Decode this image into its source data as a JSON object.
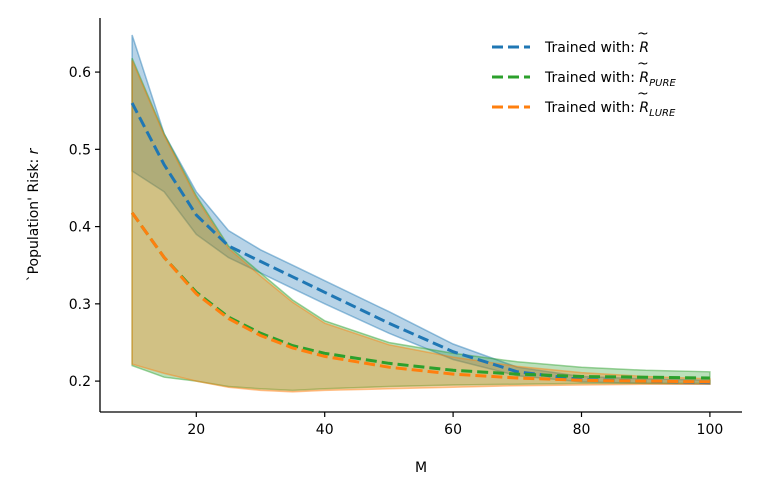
{
  "chart_data": {
    "type": "line",
    "xlabel": "M",
    "ylabel": "`Population' Risk: ",
    "ylabel_var": "r",
    "xlim": [
      5,
      105
    ],
    "ylim": [
      0.16,
      0.67
    ],
    "xticks": [
      20,
      40,
      60,
      80,
      100
    ],
    "yticks": [
      0.2,
      0.3,
      0.4,
      0.5,
      0.6
    ],
    "xtick_labels": [
      "20",
      "40",
      "60",
      "80",
      "100"
    ],
    "ytick_labels": [
      "0.2",
      "0.3",
      "0.4",
      "0.5",
      "0.6"
    ],
    "legend_position": "top-right",
    "grid": false,
    "x": [
      10,
      15,
      20,
      25,
      30,
      35,
      40,
      50,
      60,
      70,
      80,
      90,
      100
    ],
    "series": [
      {
        "name": "Trained with: ",
        "label_main": "Trained with: ",
        "symbol": "R",
        "subscript": "",
        "color": "#1f77b4",
        "values": [
          0.56,
          0.48,
          0.415,
          0.375,
          0.355,
          0.335,
          0.315,
          0.275,
          0.238,
          0.212,
          0.202,
          0.2,
          0.198
        ],
        "upper": [
          0.648,
          0.52,
          0.445,
          0.395,
          0.37,
          0.35,
          0.33,
          0.29,
          0.248,
          0.218,
          0.206,
          0.203,
          0.201
        ],
        "lower": [
          0.472,
          0.445,
          0.39,
          0.36,
          0.34,
          0.32,
          0.3,
          0.262,
          0.228,
          0.207,
          0.199,
          0.197,
          0.196
        ]
      },
      {
        "name": "Trained with: PURE",
        "label_main": "Trained with: ",
        "symbol": "R",
        "subscript": "PURE",
        "color": "#2ca02c",
        "values": [
          0.418,
          0.36,
          0.315,
          0.283,
          0.262,
          0.246,
          0.236,
          0.223,
          0.214,
          0.209,
          0.206,
          0.205,
          0.204
        ],
        "upper": [
          0.618,
          0.52,
          0.44,
          0.375,
          0.34,
          0.305,
          0.278,
          0.25,
          0.236,
          0.225,
          0.218,
          0.214,
          0.212
        ],
        "lower": [
          0.22,
          0.205,
          0.2,
          0.193,
          0.19,
          0.188,
          0.19,
          0.193,
          0.195,
          0.196,
          0.197,
          0.197,
          0.197
        ]
      },
      {
        "name": "Trained with: LURE",
        "label_main": "Trained with: ",
        "symbol": "R",
        "subscript": "LURE",
        "color": "#ff7f0e",
        "values": [
          0.418,
          0.36,
          0.313,
          0.281,
          0.259,
          0.243,
          0.232,
          0.218,
          0.209,
          0.204,
          0.201,
          0.2,
          0.199
        ],
        "upper": [
          0.615,
          0.518,
          0.437,
          0.372,
          0.336,
          0.302,
          0.275,
          0.247,
          0.231,
          0.219,
          0.211,
          0.206,
          0.203
        ],
        "lower": [
          0.222,
          0.21,
          0.2,
          0.192,
          0.188,
          0.186,
          0.188,
          0.19,
          0.192,
          0.194,
          0.195,
          0.196,
          0.196
        ]
      }
    ]
  }
}
